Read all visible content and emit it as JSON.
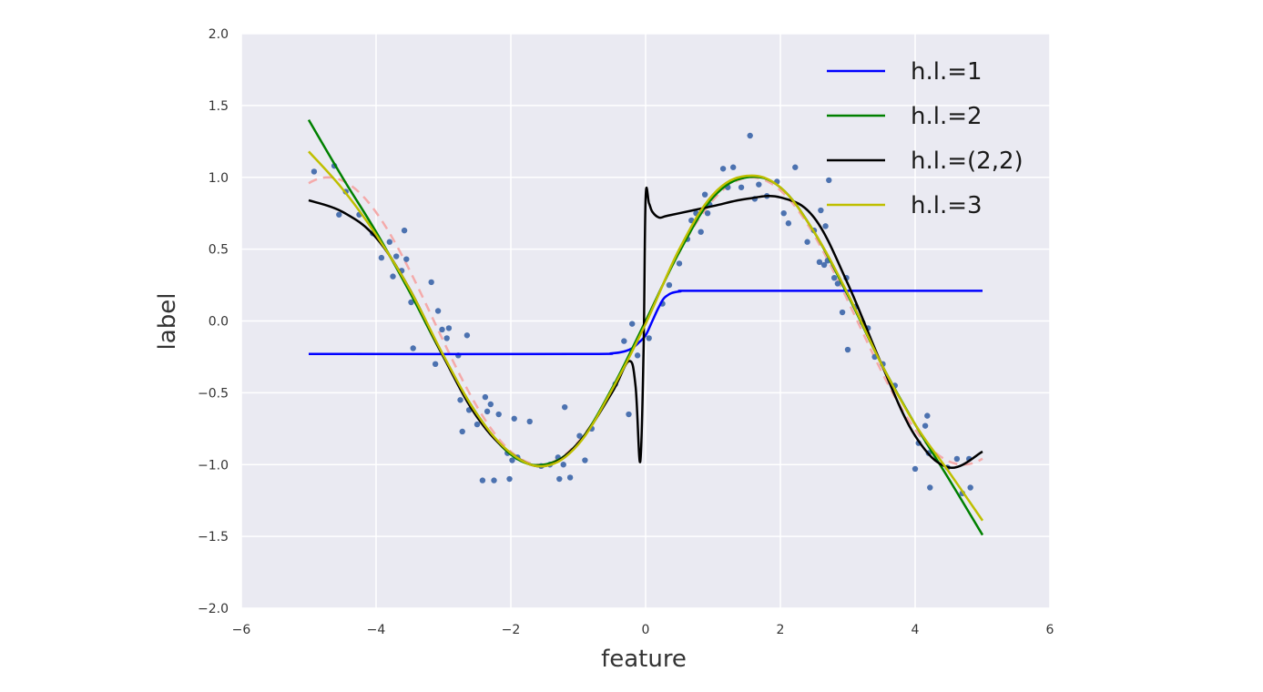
{
  "chart_data": {
    "type": "line",
    "title": "",
    "xlabel": "feature",
    "ylabel": "label",
    "xlim": [
      -6,
      6
    ],
    "ylim": [
      -2.0,
      2.0
    ],
    "xticks": [
      -6,
      -4,
      -2,
      0,
      2,
      4,
      6
    ],
    "xtick_labels": [
      "−6",
      "−4",
      "−2",
      "0",
      "2",
      "4",
      "6"
    ],
    "yticks": [
      -2.0,
      -1.5,
      -1.0,
      -0.5,
      0.0,
      0.5,
      1.0,
      1.5,
      2.0
    ],
    "ytick_labels": [
      "−2.0",
      "−1.5",
      "−1.0",
      "−0.5",
      "0.0",
      "0.5",
      "1.0",
      "1.5",
      "2.0"
    ],
    "grid": true,
    "legend_position": "top-right",
    "background": "#eaeaf2",
    "scatter": {
      "color": "#4c72b0",
      "points": [
        [
          -4.92,
          1.04
        ],
        [
          -4.62,
          1.08
        ],
        [
          -4.55,
          0.74
        ],
        [
          -4.45,
          0.9
        ],
        [
          -4.25,
          0.74
        ],
        [
          -4.05,
          0.61
        ],
        [
          -3.92,
          0.44
        ],
        [
          -3.8,
          0.55
        ],
        [
          -3.75,
          0.31
        ],
        [
          -3.7,
          0.45
        ],
        [
          -3.62,
          0.35
        ],
        [
          -3.58,
          0.63
        ],
        [
          -3.55,
          0.43
        ],
        [
          -3.48,
          0.13
        ],
        [
          -3.45,
          -0.19
        ],
        [
          -3.18,
          0.27
        ],
        [
          -3.12,
          -0.3
        ],
        [
          -3.08,
          0.07
        ],
        [
          -3.02,
          -0.06
        ],
        [
          -2.95,
          -0.12
        ],
        [
          -2.92,
          -0.05
        ],
        [
          -2.78,
          -0.24
        ],
        [
          -2.75,
          -0.55
        ],
        [
          -2.72,
          -0.77
        ],
        [
          -2.65,
          -0.1
        ],
        [
          -2.62,
          -0.62
        ],
        [
          -2.5,
          -0.72
        ],
        [
          -2.42,
          -1.11
        ],
        [
          -2.38,
          -0.53
        ],
        [
          -2.35,
          -0.63
        ],
        [
          -2.3,
          -0.58
        ],
        [
          -2.25,
          -1.11
        ],
        [
          -2.18,
          -0.65
        ],
        [
          -2.05,
          -0.92
        ],
        [
          -2.02,
          -1.1
        ],
        [
          -1.98,
          -0.97
        ],
        [
          -1.95,
          -0.68
        ],
        [
          -1.9,
          -0.95
        ],
        [
          -1.72,
          -0.7
        ],
        [
          -1.55,
          -1.01
        ],
        [
          -1.42,
          -1.0
        ],
        [
          -1.3,
          -0.95
        ],
        [
          -1.28,
          -1.1
        ],
        [
          -1.22,
          -1.0
        ],
        [
          -1.2,
          -0.6
        ],
        [
          -1.12,
          -1.09
        ],
        [
          -0.98,
          -0.8
        ],
        [
          -0.9,
          -0.97
        ],
        [
          -0.8,
          -0.75
        ],
        [
          -0.45,
          -0.44
        ],
        [
          -0.32,
          -0.14
        ],
        [
          -0.25,
          -0.65
        ],
        [
          -0.2,
          -0.02
        ],
        [
          -0.12,
          -0.24
        ],
        [
          0.05,
          -0.12
        ],
        [
          0.25,
          0.12
        ],
        [
          0.35,
          0.25
        ],
        [
          0.5,
          0.4
        ],
        [
          0.62,
          0.57
        ],
        [
          0.68,
          0.7
        ],
        [
          0.75,
          0.75
        ],
        [
          0.82,
          0.62
        ],
        [
          0.88,
          0.88
        ],
        [
          0.92,
          0.75
        ],
        [
          0.95,
          0.81
        ],
        [
          1.15,
          1.06
        ],
        [
          1.22,
          0.93
        ],
        [
          1.3,
          1.07
        ],
        [
          1.42,
          0.93
        ],
        [
          1.55,
          1.29
        ],
        [
          1.62,
          0.85
        ],
        [
          1.68,
          0.95
        ],
        [
          1.8,
          0.87
        ],
        [
          1.95,
          0.97
        ],
        [
          2.05,
          0.75
        ],
        [
          2.12,
          0.68
        ],
        [
          2.22,
          1.07
        ],
        [
          2.4,
          0.55
        ],
        [
          2.5,
          0.63
        ],
        [
          2.58,
          0.41
        ],
        [
          2.6,
          0.77
        ],
        [
          2.65,
          0.39
        ],
        [
          2.67,
          0.66
        ],
        [
          2.7,
          0.42
        ],
        [
          2.72,
          0.98
        ],
        [
          2.8,
          0.3
        ],
        [
          2.85,
          0.26
        ],
        [
          2.92,
          0.06
        ],
        [
          2.98,
          0.3
        ],
        [
          3.0,
          -0.2
        ],
        [
          3.12,
          0.1
        ],
        [
          3.22,
          -0.01
        ],
        [
          3.3,
          -0.05
        ],
        [
          3.4,
          -0.25
        ],
        [
          3.52,
          -0.3
        ],
        [
          3.7,
          -0.45
        ],
        [
          4.0,
          -1.03
        ],
        [
          4.05,
          -0.85
        ],
        [
          4.15,
          -0.73
        ],
        [
          4.18,
          -0.66
        ],
        [
          4.2,
          -0.92
        ],
        [
          4.22,
          -1.16
        ],
        [
          4.48,
          -1.02
        ],
        [
          4.62,
          -0.96
        ],
        [
          4.7,
          -1.2
        ],
        [
          4.8,
          -0.96
        ],
        [
          4.82,
          -1.16
        ]
      ]
    },
    "true_function": {
      "color": "#f4aaaa",
      "style": "dashed",
      "x_range": [
        -5,
        5
      ],
      "function": "sin(x)"
    },
    "series": [
      {
        "name": "h.l.=1",
        "color": "#0000ff",
        "x": [
          -5.0,
          -1.0,
          -0.5,
          -0.3,
          -0.2,
          -0.1,
          0.0,
          0.1,
          0.2,
          0.3,
          0.5,
          1.0,
          5.0
        ],
        "y": [
          -0.23,
          -0.23,
          -0.225,
          -0.21,
          -0.19,
          -0.15,
          -0.1,
          0.0,
          0.1,
          0.17,
          0.205,
          0.21,
          0.21
        ]
      },
      {
        "name": "h.l.=2",
        "color": "#008000",
        "x": [
          -5.0,
          -4.5,
          -4.0,
          -3.5,
          -3.0,
          -2.5,
          -2.0,
          -1.5,
          -1.0,
          -0.5,
          0.0,
          0.5,
          1.0,
          1.5,
          2.0,
          2.5,
          3.0,
          3.5,
          4.0,
          4.5,
          5.0
        ],
        "y": [
          1.4,
          1.0,
          0.62,
          0.2,
          -0.25,
          -0.65,
          -0.93,
          -1.0,
          -0.85,
          -0.47,
          0.0,
          0.48,
          0.86,
          1.0,
          0.93,
          0.62,
          0.18,
          -0.3,
          -0.72,
          -1.1,
          -1.49
        ]
      },
      {
        "name": "h.l.=(2,2)",
        "color": "#000000",
        "x": [
          -5.0,
          -4.5,
          -4.0,
          -3.5,
          -3.0,
          -2.5,
          -2.0,
          -1.5,
          -1.0,
          -0.5,
          -0.25,
          -0.15,
          -0.08,
          -0.03,
          0.0,
          0.05,
          0.1,
          0.2,
          0.3,
          0.5,
          1.0,
          1.5,
          2.0,
          2.5,
          3.0,
          3.5,
          4.0,
          4.5,
          5.0
        ],
        "y": [
          0.84,
          0.76,
          0.58,
          0.22,
          -0.25,
          -0.67,
          -0.92,
          -1.01,
          -0.85,
          -0.5,
          -0.28,
          -0.45,
          -0.98,
          -0.2,
          0.85,
          0.82,
          0.76,
          0.72,
          0.73,
          0.75,
          0.8,
          0.85,
          0.86,
          0.72,
          0.26,
          -0.3,
          -0.8,
          -1.02,
          -0.91
        ]
      },
      {
        "name": "h.l.=3",
        "color": "#bfbf00",
        "x": [
          -5.0,
          -4.5,
          -4.0,
          -3.5,
          -3.0,
          -2.5,
          -2.0,
          -1.5,
          -1.0,
          -0.5,
          0.0,
          0.5,
          1.0,
          1.5,
          2.0,
          2.5,
          3.0,
          3.5,
          4.0,
          4.5,
          5.0
        ],
        "y": [
          1.18,
          0.92,
          0.6,
          0.22,
          -0.24,
          -0.65,
          -0.92,
          -1.01,
          -0.86,
          -0.48,
          -0.02,
          0.5,
          0.88,
          1.01,
          0.93,
          0.62,
          0.19,
          -0.3,
          -0.72,
          -1.05,
          -1.39
        ]
      }
    ]
  }
}
